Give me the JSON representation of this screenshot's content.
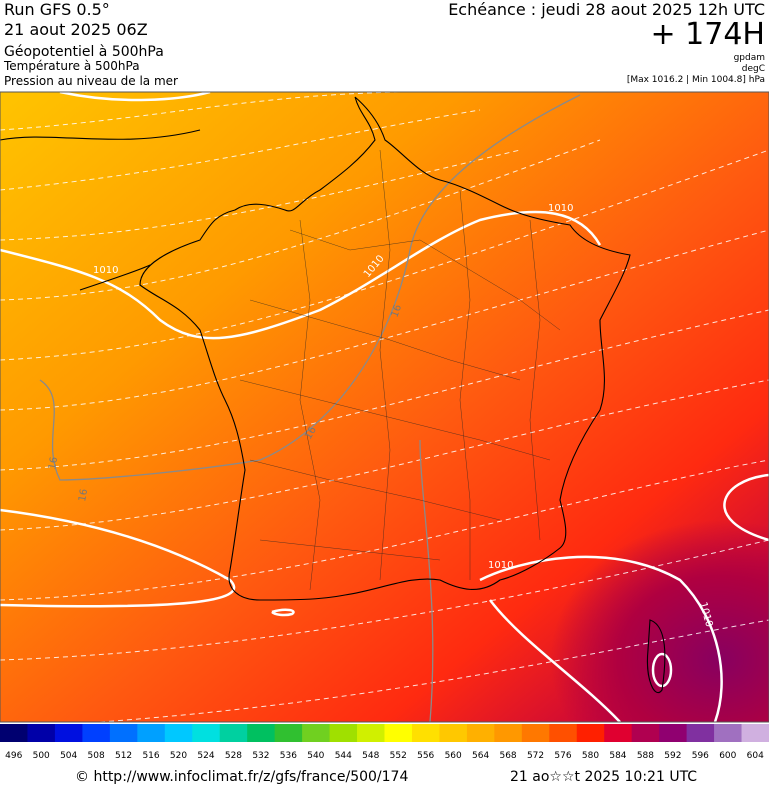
{
  "header": {
    "run": "Run GFS 0.5°",
    "run_date": "21 aout 2025 06Z",
    "field_1": "Géopotentiel à 500hPa",
    "field_2": "Température à 500hPa",
    "field_3": "Pression au niveau de la mer",
    "valid": "Echéance : jeudi 28 aout 2025 12h UTC",
    "lead": "+ 174H",
    "unit_1": "gpdam",
    "unit_2": "degC",
    "range": "[Max 1016.2 | Min 1004.8] hPa"
  },
  "map": {
    "contour_labels": [
      "1010",
      "1010",
      "1010",
      "1010",
      "1010",
      "16",
      "16",
      "16",
      "16"
    ]
  },
  "scale": {
    "labels": [
      "496",
      "500",
      "504",
      "508",
      "512",
      "516",
      "520",
      "524",
      "528",
      "532",
      "536",
      "540",
      "544",
      "548",
      "552",
      "556",
      "560",
      "564",
      "568",
      "572",
      "576",
      "580",
      "584",
      "588",
      "592",
      "596",
      "600",
      "604"
    ],
    "colors": [
      "#000070",
      "#0000a8",
      "#0010e0",
      "#0040ff",
      "#0070ff",
      "#00a0ff",
      "#00c8ff",
      "#00e0e0",
      "#00d0a0",
      "#00c060",
      "#30c030",
      "#70d020",
      "#a0e000",
      "#d0f000",
      "#ffff00",
      "#ffe000",
      "#ffc800",
      "#ffb000",
      "#ff9800",
      "#ff7800",
      "#ff5000",
      "#ff2000",
      "#e00030",
      "#b00050",
      "#900070",
      "#8030a0",
      "#a070c0",
      "#d0b0e0"
    ]
  },
  "footer": {
    "url": "© http://www.infoclimat.fr/z/gfs/france/500/174",
    "timestamp": "21 ao☆☆t 2025 10:21 UTC"
  }
}
